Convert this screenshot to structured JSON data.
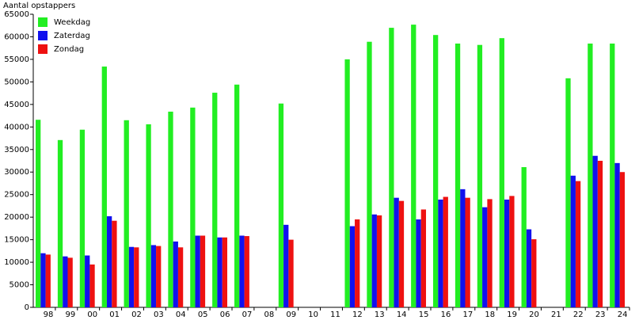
{
  "chart_data": {
    "type": "bar",
    "y_label": "Aantal opstappers",
    "categories": [
      "98",
      "99",
      "00",
      "01",
      "02",
      "03",
      "04",
      "05",
      "06",
      "07",
      "08",
      "09",
      "10",
      "11",
      "12",
      "13",
      "14",
      "15",
      "16",
      "17",
      "18",
      "19",
      "20",
      "21",
      "22",
      "23",
      "24"
    ],
    "series": [
      {
        "name": "Weekdag",
        "color": "#22ee22",
        "values": [
          41600,
          37100,
          39400,
          53400,
          41500,
          40600,
          43400,
          44300,
          47600,
          49400,
          null,
          45200,
          null,
          null,
          55000,
          58900,
          62000,
          62700,
          60400,
          58500,
          58200,
          59700,
          31100,
          null,
          50800,
          58500,
          58500
        ]
      },
      {
        "name": "Zaterdag",
        "color": "#1111ee",
        "values": [
          12000,
          11300,
          11500,
          20200,
          13400,
          13800,
          14600,
          15900,
          15500,
          15900,
          null,
          18300,
          null,
          null,
          18000,
          20600,
          24300,
          19500,
          23900,
          26200,
          22200,
          23900,
          17300,
          null,
          29200,
          33600,
          32000
        ]
      },
      {
        "name": "Zondag",
        "color": "#ee1111",
        "values": [
          11700,
          11000,
          9500,
          19200,
          13300,
          13600,
          13300,
          15900,
          15500,
          15800,
          null,
          15000,
          null,
          null,
          19500,
          20400,
          23600,
          21700,
          24500,
          24300,
          24000,
          24700,
          15100,
          null,
          28000,
          32500,
          30000
        ]
      }
    ],
    "ylim": [
      0,
      65000
    ],
    "yticks": [
      0,
      5000,
      10000,
      15000,
      20000,
      25000,
      30000,
      35000,
      40000,
      45000,
      50000,
      55000,
      60000,
      65000
    ],
    "grid": false,
    "legend": "top-left"
  }
}
